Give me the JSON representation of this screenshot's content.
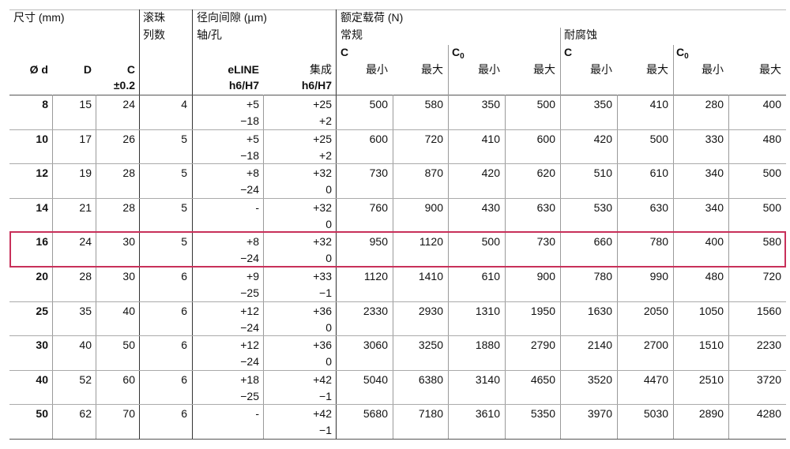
{
  "header": {
    "size": "尺寸 (mm)",
    "ball_rows": [
      "滚珠",
      "列数"
    ],
    "clearance": "径向间隙 (µm)",
    "shaft_hole": "轴/孔",
    "load": "额定载荷 (N)",
    "standard": "常规",
    "corrosion": "耐腐蚀",
    "dynamic": "C",
    "static": {
      "symbol": "C",
      "subscript": "0"
    },
    "d": "Ø d",
    "D": "D",
    "C": "C",
    "tolerance": "±0.2",
    "eline": "eLINE",
    "fit": "h6/H7",
    "integrated": "集成",
    "min": "最小",
    "max": "最大"
  },
  "rows": [
    {
      "d": 8,
      "D": 15,
      "C": 24,
      "n": 4,
      "eline": [
        "+5",
        "−18"
      ],
      "integrated": [
        "+25",
        "+2"
      ],
      "loads": [
        500,
        580,
        350,
        500,
        350,
        410,
        280,
        400
      ]
    },
    {
      "d": 10,
      "D": 17,
      "C": 26,
      "n": 5,
      "eline": [
        "+5",
        "−18"
      ],
      "integrated": [
        "+25",
        "+2"
      ],
      "loads": [
        600,
        720,
        410,
        600,
        420,
        500,
        330,
        480
      ]
    },
    {
      "d": 12,
      "D": 19,
      "C": 28,
      "n": 5,
      "eline": [
        "+8",
        "−24"
      ],
      "integrated": [
        "+32",
        "0"
      ],
      "loads": [
        730,
        870,
        420,
        620,
        510,
        610,
        340,
        500
      ]
    },
    {
      "d": 14,
      "D": 21,
      "C": 28,
      "n": 5,
      "eline": [
        "-"
      ],
      "integrated": [
        "+32",
        "0"
      ],
      "loads": [
        760,
        900,
        430,
        630,
        530,
        630,
        340,
        500
      ]
    },
    {
      "d": 16,
      "D": 24,
      "C": 30,
      "n": 5,
      "eline": [
        "+8",
        "−24"
      ],
      "integrated": [
        "+32",
        "0"
      ],
      "loads": [
        950,
        1120,
        500,
        730,
        660,
        780,
        400,
        580
      ],
      "highlight": true
    },
    {
      "d": 20,
      "D": 28,
      "C": 30,
      "n": 6,
      "eline": [
        "+9",
        "−25"
      ],
      "integrated": [
        "+33",
        "−1"
      ],
      "loads": [
        1120,
        1410,
        610,
        900,
        780,
        990,
        480,
        720
      ]
    },
    {
      "d": 25,
      "D": 35,
      "C": 40,
      "n": 6,
      "eline": [
        "+12",
        "−24"
      ],
      "integrated": [
        "+36",
        "0"
      ],
      "loads": [
        2330,
        2930,
        1310,
        1950,
        1630,
        2050,
        1050,
        1560
      ]
    },
    {
      "d": 30,
      "D": 40,
      "C": 50,
      "n": 6,
      "eline": [
        "+12",
        "−24"
      ],
      "integrated": [
        "+36",
        "0"
      ],
      "loads": [
        3060,
        3250,
        1880,
        2790,
        2140,
        2700,
        1510,
        2230
      ]
    },
    {
      "d": 40,
      "D": 52,
      "C": 60,
      "n": 6,
      "eline": [
        "+18",
        "−25"
      ],
      "integrated": [
        "+42",
        "−1"
      ],
      "loads": [
        5040,
        6380,
        3140,
        4650,
        3520,
        4470,
        2510,
        3720
      ]
    },
    {
      "d": 50,
      "D": 62,
      "C": 70,
      "n": 6,
      "eline": [
        "-"
      ],
      "integrated": [
        "+42",
        "−1"
      ],
      "loads": [
        5680,
        7180,
        3610,
        5350,
        3970,
        5030,
        2890,
        4280
      ]
    }
  ]
}
